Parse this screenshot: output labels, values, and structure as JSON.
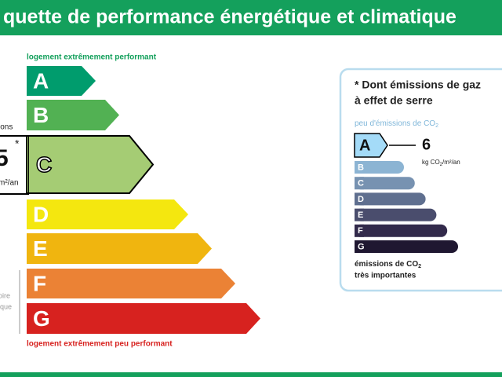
{
  "header": {
    "title": "quette de performance énergétique et climatique"
  },
  "energy": {
    "top_label": "logement extrêmement performant",
    "bottom_label": "logement extrêmement peu performant",
    "classes": [
      "A",
      "B",
      "C",
      "D",
      "E",
      "F",
      "G"
    ],
    "side_fragments": {
      "line1": "ions",
      "star": "*",
      "value": 5,
      "unit": "m²/an",
      "note1": "oire",
      "note2": "ique"
    }
  },
  "climate": {
    "title_line1": "* Dont émissions de gaz",
    "title_line2": "à effet de serre",
    "top_label": {
      "text": "peu d'émissions de CO",
      "sub": "2"
    },
    "classes": [
      "A",
      "B",
      "C",
      "D",
      "E",
      "F",
      "G"
    ],
    "value": 6,
    "unit": {
      "text": "kg CO",
      "sub": "2",
      "rest": "/m²/an"
    },
    "bottom_label": {
      "line1": "émissions de CO",
      "sub": "2",
      "line2": "très importantes"
    }
  }
}
